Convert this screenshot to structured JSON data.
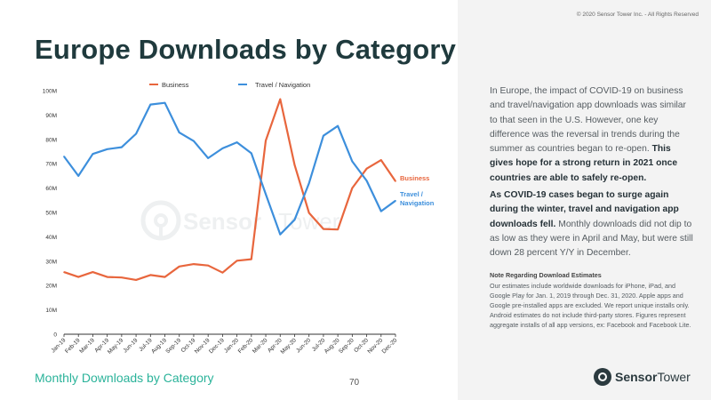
{
  "page": {
    "title": "Europe Downloads by Category",
    "footer_caption": "Monthly Downloads by Category",
    "page_number": "70",
    "copyright": "© 2020 Sensor Tower Inc. - All Rights Reserved"
  },
  "text": {
    "p1_normal": "In Europe, the impact of COVID-19 on business and travel/navigation app downloads was similar to that seen in the U.S. However, one key difference was the reversal in trends during the summer as countries began to re-open. ",
    "p1_bold": "This gives hope for a strong return in 2021 once countries are able to safely re-open.",
    "p2_bold": "As COVID-19 cases began to surge again during the winter, travel and navigation app downloads fell.",
    "p2_normal": " Monthly downloads did not dip to as low as they were in April and May, but were still down 28 percent Y/Y in December.",
    "note_title": "Note Regarding Download Estimates",
    "note_body": "Our estimates include worldwide downloads for iPhone, iPad, and Google Play for Jan. 1, 2019 through Dec. 31, 2020. Apple apps and Google pre-installed apps are excluded. We report unique installs only. Android estimates do not include third-party stores. Figures represent aggregate installs of all app versions, ex: Facebook and Facebook Lite."
  },
  "logo": {
    "part1": "Sensor",
    "part2": "Tower",
    "icon": "sensor-tower-logo-icon"
  },
  "chart_data": {
    "type": "line",
    "categories": [
      "Jan-19",
      "Feb-19",
      "Mar-19",
      "Apr-19",
      "May-19",
      "Jun-19",
      "Jul-19",
      "Aug-19",
      "Sep-19",
      "Oct-19",
      "Nov-19",
      "Dec-19",
      "Jan-20",
      "Feb-20",
      "Mar-20",
      "Apr-20",
      "May-20",
      "Jun-20",
      "Jul-20",
      "Aug-20",
      "Sep-20",
      "Oct-20",
      "Nov-20",
      "Dec-20"
    ],
    "y_tick_labels": [
      "0",
      "10M",
      "20M",
      "30M",
      "40M",
      "50M",
      "60M",
      "70M",
      "80M",
      "90M",
      "100M"
    ],
    "ylim": [
      0,
      100
    ],
    "grid": false,
    "legend_position": "top",
    "series": [
      {
        "name": "Business",
        "end_label": "Business",
        "color": "#e8663d",
        "values": [
          25.5,
          23.5,
          25.5,
          23.5,
          23.3,
          22.3,
          24.3,
          23.5,
          27.8,
          28.8,
          28.2,
          25.3,
          30.2,
          30.8,
          79.5,
          96.5,
          69.5,
          49.8,
          43.2,
          43,
          60,
          68,
          71.5,
          62.8
        ]
      },
      {
        "name": "Travel / Navigation",
        "end_label": "Travel / Navigation",
        "color": "#3d8fdc",
        "values": [
          73,
          65,
          74,
          76,
          76.8,
          82.3,
          94.3,
          95,
          82.8,
          79.3,
          72.3,
          76.3,
          78.8,
          74.3,
          57.5,
          41,
          47,
          62,
          81.5,
          85.5,
          71,
          63,
          50.5,
          54.8
        ]
      }
    ]
  }
}
